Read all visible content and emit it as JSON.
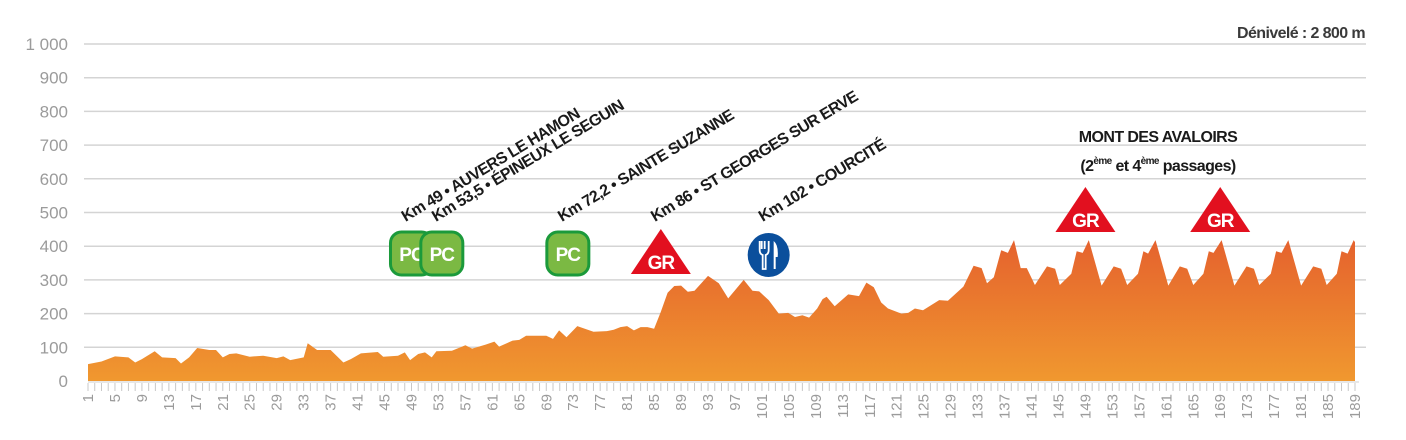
{
  "chart_data": {
    "type": "area",
    "title": "",
    "xlabel": "",
    "ylabel": "",
    "ylim": [
      0,
      1000
    ],
    "xlim": [
      1,
      189
    ],
    "grid": true,
    "y_ticks": [
      0,
      100,
      200,
      300,
      400,
      500,
      600,
      700,
      800,
      900,
      1000
    ],
    "y_tick_labels": [
      "0",
      "100",
      "200",
      "300",
      "400",
      "500",
      "600",
      "700",
      "800",
      "900",
      "1 000"
    ],
    "x_tick_step": 4,
    "fill_colors": {
      "top": "#e5622e",
      "bottom": "#f0982f"
    },
    "points": [
      [
        1,
        50
      ],
      [
        3,
        58
      ],
      [
        5,
        73
      ],
      [
        7,
        70
      ],
      [
        8,
        55
      ],
      [
        9,
        65
      ],
      [
        10.9,
        88
      ],
      [
        12,
        70
      ],
      [
        14,
        68
      ],
      [
        14.8,
        52
      ],
      [
        16,
        70
      ],
      [
        17.2,
        98
      ],
      [
        19,
        92
      ],
      [
        20,
        92
      ],
      [
        21,
        70
      ],
      [
        22,
        80
      ],
      [
        23,
        82
      ],
      [
        25,
        72
      ],
      [
        27,
        75
      ],
      [
        29,
        68
      ],
      [
        30,
        73
      ],
      [
        31,
        62
      ],
      [
        33,
        70
      ],
      [
        33.6,
        112
      ],
      [
        35,
        92
      ],
      [
        37,
        92
      ],
      [
        38.9,
        55
      ],
      [
        40,
        65
      ],
      [
        41.5,
        82
      ],
      [
        44,
        86
      ],
      [
        44.8,
        72
      ],
      [
        47,
        75
      ],
      [
        48,
        85
      ],
      [
        48.8,
        62
      ],
      [
        50,
        80
      ],
      [
        51,
        85
      ],
      [
        52,
        70
      ],
      [
        52.7,
        88
      ],
      [
        55,
        90
      ],
      [
        57,
        106
      ],
      [
        58,
        96
      ],
      [
        60,
        108
      ],
      [
        61.3,
        117
      ],
      [
        62,
        102
      ],
      [
        64,
        120
      ],
      [
        65,
        122
      ],
      [
        66,
        134
      ],
      [
        69,
        134
      ],
      [
        70,
        125
      ],
      [
        70.9,
        150
      ],
      [
        72,
        130
      ],
      [
        73.6,
        163
      ],
      [
        76,
        146
      ],
      [
        78,
        148
      ],
      [
        79,
        152
      ],
      [
        80,
        160
      ],
      [
        81,
        163
      ],
      [
        82,
        150
      ],
      [
        83,
        160
      ],
      [
        84,
        160
      ],
      [
        85,
        155
      ],
      [
        86,
        205
      ],
      [
        87,
        262
      ],
      [
        88,
        282
      ],
      [
        89,
        283
      ],
      [
        90,
        265
      ],
      [
        91,
        268
      ],
      [
        92,
        290
      ],
      [
        93,
        312
      ],
      [
        94.6,
        290
      ],
      [
        96,
        245
      ],
      [
        98.3,
        300
      ],
      [
        99.6,
        268
      ],
      [
        100.6,
        266
      ],
      [
        102,
        240
      ],
      [
        103.5,
        200
      ],
      [
        104.9,
        202
      ],
      [
        105.9,
        190
      ],
      [
        107,
        195
      ],
      [
        108,
        188
      ],
      [
        109.2,
        215
      ],
      [
        110,
        243
      ],
      [
        110.6,
        250
      ],
      [
        111.8,
        222
      ],
      [
        113.8,
        257
      ],
      [
        115.4,
        252
      ],
      [
        116.5,
        292
      ],
      [
        117.6,
        278
      ],
      [
        118.7,
        233
      ],
      [
        119.7,
        215
      ],
      [
        121.7,
        200
      ],
      [
        122.7,
        202
      ],
      [
        123.7,
        215
      ],
      [
        124.9,
        210
      ],
      [
        127.3,
        240
      ],
      [
        128.6,
        238
      ],
      [
        130.9,
        280
      ],
      [
        132.4,
        342
      ],
      [
        133.6,
        335
      ],
      [
        134.4,
        290
      ],
      [
        135.4,
        308
      ],
      [
        136.5,
        388
      ],
      [
        137.5,
        380
      ],
      [
        138.4,
        418
      ],
      [
        139.4,
        335
      ],
      [
        140.3,
        335
      ],
      [
        141.5,
        285
      ],
      [
        143.3,
        340
      ],
      [
        144.5,
        333
      ],
      [
        145.2,
        285
      ],
      [
        146.9,
        318
      ],
      [
        147.7,
        385
      ],
      [
        148.6,
        380
      ],
      [
        149.5,
        418
      ],
      [
        151.4,
        283
      ],
      [
        153.2,
        340
      ],
      [
        154.3,
        333
      ],
      [
        155.2,
        285
      ],
      [
        156.8,
        318
      ],
      [
        157.6,
        385
      ],
      [
        158.3,
        378
      ],
      [
        159.4,
        418
      ],
      [
        161.3,
        283
      ],
      [
        163,
        340
      ],
      [
        164.1,
        333
      ],
      [
        165,
        285
      ],
      [
        166.5,
        318
      ],
      [
        167.3,
        385
      ],
      [
        168,
        380
      ],
      [
        169.2,
        418
      ],
      [
        171.1,
        283
      ],
      [
        172.9,
        340
      ],
      [
        174,
        333
      ],
      [
        174.8,
        285
      ],
      [
        176.5,
        318
      ],
      [
        177.3,
        385
      ],
      [
        178.1,
        380
      ],
      [
        179.1,
        418
      ],
      [
        181,
        283
      ],
      [
        182.8,
        340
      ],
      [
        184,
        333
      ],
      [
        184.8,
        285
      ],
      [
        186.3,
        318
      ],
      [
        187,
        385
      ],
      [
        187.9,
        378
      ],
      [
        188.8,
        418
      ],
      [
        189,
        412
      ]
    ]
  },
  "header": {
    "denivele": "Dénivelé : 2 800 m"
  },
  "annotations": [
    {
      "text": "Km 49 • AUVERS LE HAMON",
      "km": 49
    },
    {
      "text": "Km 53,5 • ÉPINEUX LE SEGUIN",
      "km": 53.5
    },
    {
      "text": "Km 72,2 • SAINTE SUZANNE",
      "km": 72.2
    },
    {
      "text": "Km 86 • ST GEORGES SUR ERVE",
      "km": 86
    },
    {
      "text": "Km 102 • COURCITÉ",
      "km": 102
    }
  ],
  "markers": [
    {
      "type": "pc-badge",
      "label": "PC",
      "km": 49
    },
    {
      "type": "pc-badge",
      "label": "PC",
      "km": 53.5
    },
    {
      "type": "pc-badge",
      "label": "PC",
      "km": 72.2
    },
    {
      "type": "gr-triangle",
      "label": "GR",
      "km": 86
    },
    {
      "type": "restaurant-icon",
      "label": "",
      "km": 102
    },
    {
      "type": "gr-triangle",
      "label": "GR",
      "km": 149
    },
    {
      "type": "gr-triangle",
      "label": "GR",
      "km": 169
    }
  ],
  "summit": {
    "title": "MONT DES AVALOIRS",
    "sub_open": "(2",
    "sup1": "ème",
    "sub_mid": " et 4",
    "sup2": "ème",
    "sub_close": " passages)"
  },
  "colors": {
    "pc_fill": "#7bb943",
    "pc_border": "#1b9a3b",
    "gr": "#e2101f",
    "food": "#0b4f9c",
    "grid": "#d4d4d4",
    "axis_text": "#9b9b9b"
  }
}
